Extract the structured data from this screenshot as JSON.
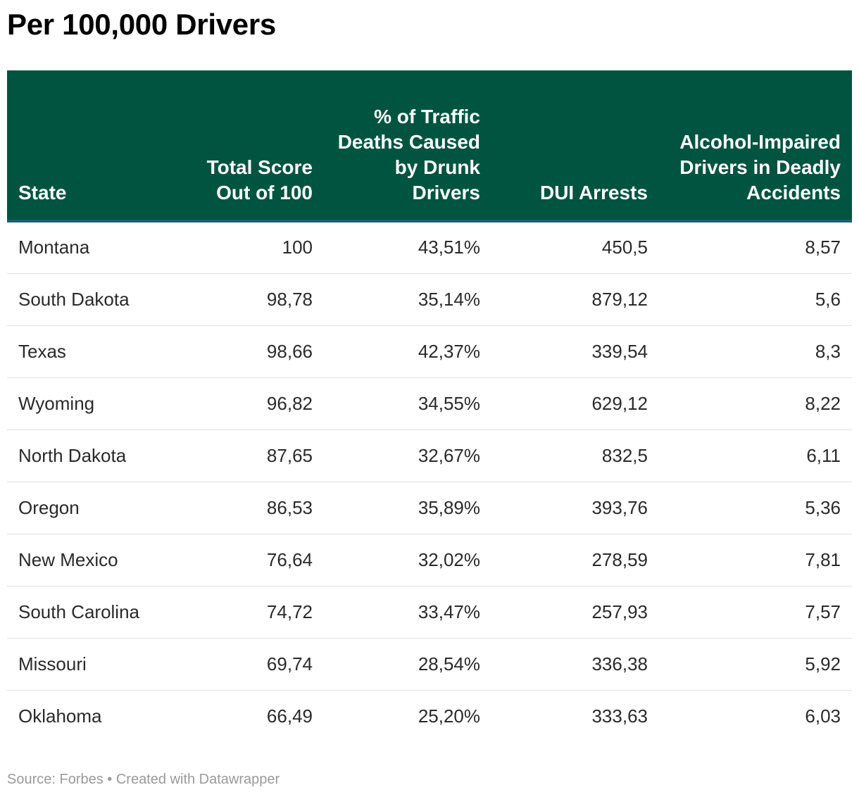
{
  "title": "Per 100,000 Drivers",
  "colors": {
    "header_bg": "#005440",
    "header_text": "#ffffff",
    "header_rule": "#1b5e78",
    "row_divider": "#e0e0e0",
    "footer_text": "#9a9a9a"
  },
  "chart_data": {
    "type": "table",
    "title": "Per 100,000 Drivers",
    "columns": [
      "State",
      "Total Score Out of 100",
      "% of Traffic Deaths Caused by Drunk Drivers",
      "DUI Arrests",
      "Alcohol-Impaired Drivers in Deadly Accidents"
    ],
    "rows": [
      [
        "Montana",
        "100",
        "43,51%",
        "450,5",
        "8,57"
      ],
      [
        "South Dakota",
        "98,78",
        "35,14%",
        "879,12",
        "5,6"
      ],
      [
        "Texas",
        "98,66",
        "42,37%",
        "339,54",
        "8,3"
      ],
      [
        "Wyoming",
        "96,82",
        "34,55%",
        "629,12",
        "8,22"
      ],
      [
        "North Dakota",
        "87,65",
        "32,67%",
        "832,5",
        "6,11"
      ],
      [
        "Oregon",
        "86,53",
        "35,89%",
        "393,76",
        "5,36"
      ],
      [
        "New Mexico",
        "76,64",
        "32,02%",
        "278,59",
        "7,81"
      ],
      [
        "South Carolina",
        "74,72",
        "33,47%",
        "257,93",
        "7,57"
      ],
      [
        "Missouri",
        "69,74",
        "28,54%",
        "336,38",
        "5,92"
      ],
      [
        "Oklahoma",
        "66,49",
        "25,20%",
        "333,63",
        "6,03"
      ]
    ]
  },
  "footer": "Source: Forbes • Created with Datawrapper"
}
